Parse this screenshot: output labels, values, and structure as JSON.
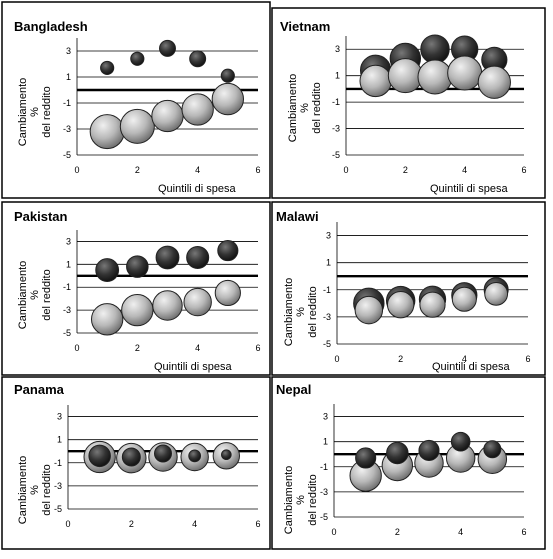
{
  "chart_data": [
    {
      "type": "scatter",
      "title": "Bangladesh",
      "xlabel": "Quintili di spesa",
      "ylabel": "Cambiamento % del reddito",
      "xlim": [
        0,
        6
      ],
      "ylim": [
        -5,
        4
      ],
      "xticks": [
        "0",
        "2",
        "4",
        "6"
      ],
      "yticks": [
        "3",
        "1",
        "-1",
        "-3",
        "-5"
      ],
      "series": [
        {
          "color": "#222222",
          "points": [
            {
              "x": 1,
              "y": 1.7,
              "size": 0.15
            },
            {
              "x": 2,
              "y": 2.4,
              "size": 0.15
            },
            {
              "x": 3,
              "y": 3.2,
              "size": 0.22
            },
            {
              "x": 4,
              "y": 2.4,
              "size": 0.22
            },
            {
              "x": 5,
              "y": 1.1,
              "size": 0.15
            }
          ]
        },
        {
          "color": "#b0b0b0",
          "points": [
            {
              "x": 1,
              "y": -3.2,
              "size": 1.0
            },
            {
              "x": 2,
              "y": -2.8,
              "size": 1.0
            },
            {
              "x": 3,
              "y": -2.0,
              "size": 0.85
            },
            {
              "x": 4,
              "y": -1.5,
              "size": 0.85
            },
            {
              "x": 5,
              "y": -0.7,
              "size": 0.85
            }
          ]
        }
      ]
    },
    {
      "type": "scatter",
      "title": "Vietnam",
      "xlabel": "Quintili di spesa",
      "ylabel": "Cambiamento % del reddito",
      "xlim": [
        0,
        6
      ],
      "ylim": [
        -5,
        4
      ],
      "xticks": [
        "0",
        "2",
        "4",
        "6"
      ],
      "yticks": [
        "3",
        "1",
        "-1",
        "-3",
        "-5"
      ],
      "series": [
        {
          "color": "#222222",
          "points": [
            {
              "x": 1,
              "y": 1.4,
              "size": 0.8
            },
            {
              "x": 2,
              "y": 2.3,
              "size": 0.8
            },
            {
              "x": 3,
              "y": 3.0,
              "size": 0.7
            },
            {
              "x": 4,
              "y": 3.0,
              "size": 0.6
            },
            {
              "x": 5,
              "y": 2.2,
              "size": 0.55
            }
          ]
        },
        {
          "color": "#b0b0b0",
          "points": [
            {
              "x": 1,
              "y": 0.6,
              "size": 0.85
            },
            {
              "x": 2,
              "y": 1.0,
              "size": 1.0
            },
            {
              "x": 3,
              "y": 0.9,
              "size": 1.0
            },
            {
              "x": 4,
              "y": 1.2,
              "size": 1.0
            },
            {
              "x": 5,
              "y": 0.5,
              "size": 0.9
            }
          ]
        }
      ]
    },
    {
      "type": "scatter",
      "title": "Pakistan",
      "xlabel": "Quintili di spesa",
      "ylabel": "Cambiamento % del reddito",
      "xlim": [
        0,
        6
      ],
      "ylim": [
        -5,
        4
      ],
      "xticks": [
        "0",
        "2",
        "4",
        "6"
      ],
      "yticks": [
        "3",
        "1",
        "-1",
        "-3",
        "-5"
      ],
      "series": [
        {
          "color": "#222222",
          "points": [
            {
              "x": 1,
              "y": 0.5,
              "size": 0.45
            },
            {
              "x": 2,
              "y": 0.8,
              "size": 0.4
            },
            {
              "x": 3,
              "y": 1.6,
              "size": 0.45
            },
            {
              "x": 4,
              "y": 1.6,
              "size": 0.42
            },
            {
              "x": 5,
              "y": 2.2,
              "size": 0.35
            }
          ]
        },
        {
          "color": "#b0b0b0",
          "points": [
            {
              "x": 1,
              "y": -3.8,
              "size": 0.85
            },
            {
              "x": 2,
              "y": -3.0,
              "size": 0.85
            },
            {
              "x": 3,
              "y": -2.6,
              "size": 0.75
            },
            {
              "x": 4,
              "y": -2.3,
              "size": 0.65
            },
            {
              "x": 5,
              "y": -1.5,
              "size": 0.55
            }
          ]
        }
      ]
    },
    {
      "type": "scatter",
      "title": "Malawi",
      "xlabel": "Quintili di spesa",
      "ylabel": "Cambiamento % del reddito",
      "xlim": [
        0,
        6
      ],
      "ylim": [
        -5,
        4
      ],
      "xticks": [
        "0",
        "2",
        "4",
        "6"
      ],
      "yticks": [
        "3",
        "1",
        "-1",
        "-3",
        "-5"
      ],
      "series": [
        {
          "color": "#222222",
          "points": [
            {
              "x": 1,
              "y": -2.0,
              "size": 0.8
            },
            {
              "x": 2,
              "y": -1.8,
              "size": 0.7
            },
            {
              "x": 3,
              "y": -1.7,
              "size": 0.6
            },
            {
              "x": 4,
              "y": -1.4,
              "size": 0.55
            },
            {
              "x": 5,
              "y": -1.0,
              "size": 0.5
            }
          ]
        },
        {
          "color": "#b0b0b0",
          "points": [
            {
              "x": 1,
              "y": -2.5,
              "size": 0.65
            },
            {
              "x": 2,
              "y": -2.1,
              "size": 0.6
            },
            {
              "x": 3,
              "y": -2.1,
              "size": 0.55
            },
            {
              "x": 4,
              "y": -1.7,
              "size": 0.5
            },
            {
              "x": 5,
              "y": -1.3,
              "size": 0.45
            }
          ]
        }
      ]
    },
    {
      "type": "scatter",
      "title": "Panama",
      "xlabel": "",
      "ylabel": "Cambiamento % del reddito",
      "xlim": [
        0,
        6
      ],
      "ylim": [
        -5,
        4
      ],
      "xticks": [
        "0",
        "2",
        "4",
        "6"
      ],
      "yticks": [
        "3",
        "1",
        "-1",
        "-3",
        "-5"
      ],
      "series": [
        {
          "color": "#b0b0b0",
          "points": [
            {
              "x": 1,
              "y": -0.5,
              "size": 0.85
            },
            {
              "x": 2,
              "y": -0.6,
              "size": 0.75
            },
            {
              "x": 3,
              "y": -0.5,
              "size": 0.7
            },
            {
              "x": 4,
              "y": -0.5,
              "size": 0.65
            },
            {
              "x": 5,
              "y": -0.4,
              "size": 0.6
            }
          ]
        },
        {
          "color": "#222222",
          "points": [
            {
              "x": 1,
              "y": -0.4,
              "size": 0.4
            },
            {
              "x": 2,
              "y": -0.5,
              "size": 0.28
            },
            {
              "x": 3,
              "y": -0.2,
              "size": 0.25
            },
            {
              "x": 4,
              "y": -0.4,
              "size": 0.12
            },
            {
              "x": 5,
              "y": -0.3,
              "size": 0.08
            }
          ]
        }
      ]
    },
    {
      "type": "scatter",
      "title": "Nepal",
      "xlabel": "",
      "ylabel": "Cambiamento % del reddito",
      "xlim": [
        0,
        6
      ],
      "ylim": [
        -5,
        4
      ],
      "xticks": [
        "0",
        "2",
        "4",
        "6"
      ],
      "yticks": [
        "3",
        "1",
        "-1",
        "-3",
        "-5"
      ],
      "series": [
        {
          "color": "#b0b0b0",
          "points": [
            {
              "x": 1,
              "y": -1.7,
              "size": 0.85
            },
            {
              "x": 2,
              "y": -0.9,
              "size": 0.8
            },
            {
              "x": 3,
              "y": -0.7,
              "size": 0.7
            },
            {
              "x": 4,
              "y": -0.3,
              "size": 0.7
            },
            {
              "x": 5,
              "y": -0.4,
              "size": 0.7
            }
          ]
        },
        {
          "color": "#222222",
          "points": [
            {
              "x": 1,
              "y": -0.3,
              "size": 0.35
            },
            {
              "x": 2,
              "y": 0.1,
              "size": 0.4
            },
            {
              "x": 3,
              "y": 0.3,
              "size": 0.35
            },
            {
              "x": 4,
              "y": 1.0,
              "size": 0.3
            },
            {
              "x": 5,
              "y": 0.4,
              "size": 0.25
            }
          ]
        }
      ]
    }
  ]
}
